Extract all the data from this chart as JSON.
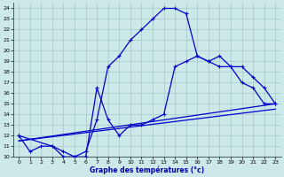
{
  "xlabel": "Graphe des températures (°c)",
  "bg_color": "#cde8e8",
  "grid_color": "#aacccc",
  "line_color": "#0000cc",
  "xlim": [
    -0.5,
    23.5
  ],
  "ylim": [
    10,
    24.5
  ],
  "xticks": [
    0,
    1,
    2,
    3,
    4,
    5,
    6,
    7,
    8,
    9,
    10,
    11,
    12,
    13,
    14,
    15,
    16,
    17,
    18,
    19,
    20,
    21,
    22,
    23
  ],
  "yticks": [
    10,
    11,
    12,
    13,
    14,
    15,
    16,
    17,
    18,
    19,
    20,
    21,
    22,
    23,
    24
  ],
  "curve1_x": [
    0,
    1,
    2,
    3,
    4,
    5,
    6,
    7,
    8,
    9,
    10,
    11,
    12,
    13,
    14,
    15,
    16,
    17,
    18,
    19,
    20,
    21,
    22,
    23
  ],
  "curve1_y": [
    12.0,
    10.5,
    11.0,
    11.0,
    10.0,
    10.0,
    10.5,
    13.5,
    18.5,
    19.5,
    21.0,
    22.0,
    23.0,
    24.0,
    24.0,
    23.5,
    19.5,
    19.0,
    19.5,
    18.5,
    17.0,
    16.5,
    15.0,
    15.0
  ],
  "curve2_x": [
    0,
    3,
    4,
    5,
    6,
    7,
    8,
    9,
    10,
    11,
    12,
    13,
    14,
    15,
    16,
    17,
    18,
    19,
    20,
    21,
    22,
    23
  ],
  "curve2_y": [
    12.0,
    11.0,
    10.5,
    10.0,
    10.0,
    16.5,
    13.5,
    12.0,
    13.0,
    13.0,
    13.5,
    14.0,
    18.5,
    19.0,
    19.5,
    19.0,
    18.5,
    18.5,
    18.5,
    17.5,
    16.5,
    15.0
  ],
  "line1_x": [
    0,
    23
  ],
  "line1_y": [
    11.5,
    15.0
  ],
  "line2_x": [
    0,
    23
  ],
  "line2_y": [
    11.5,
    14.5
  ]
}
